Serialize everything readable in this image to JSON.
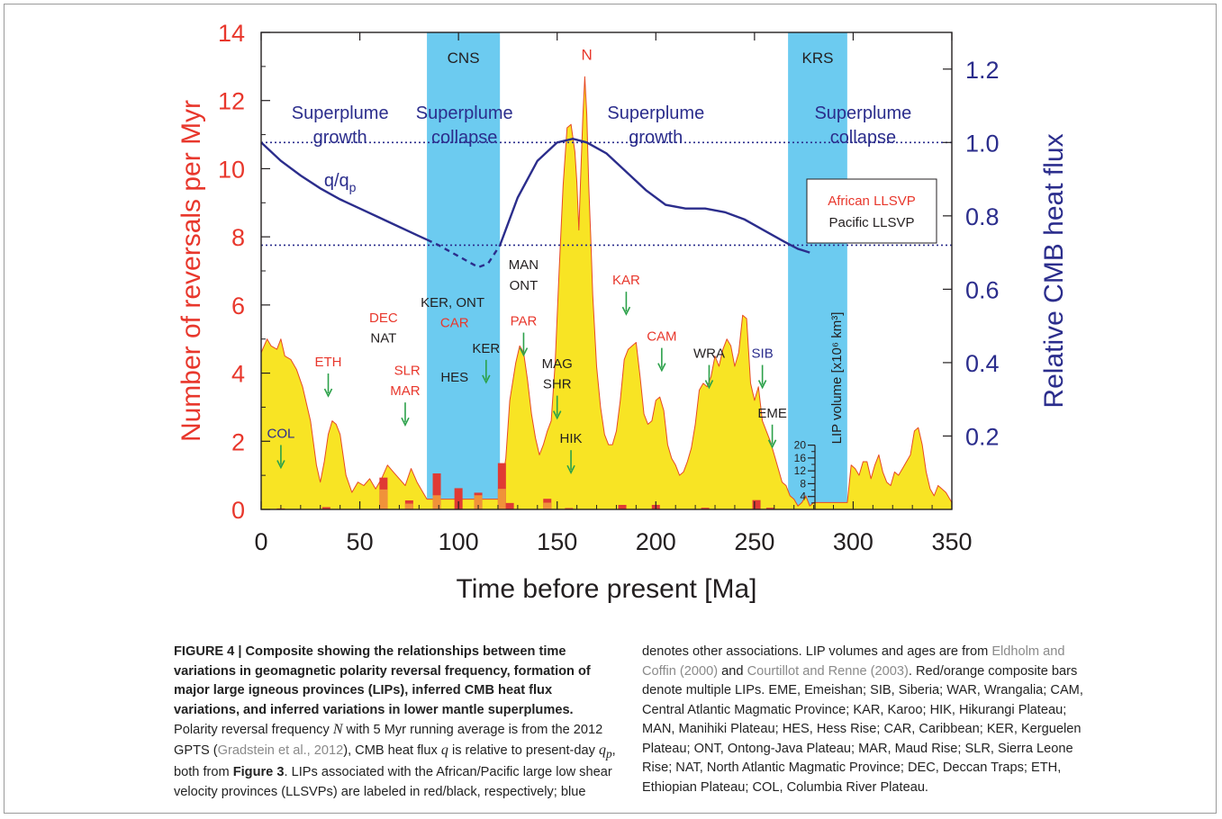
{
  "chart_data": {
    "type": "area",
    "xlabel": "Time before present  [Ma]",
    "ylabel_left": "Number of reversals per Myr",
    "ylabel_right": "Relative CMB heat flux",
    "ylabel_lip": "LIP volume [x10⁶ km³]",
    "xlim": [
      0,
      350
    ],
    "ylim_left": [
      0,
      14
    ],
    "ylim_right": [
      0,
      1.3
    ],
    "lip_volume_lim": [
      0,
      20
    ],
    "x_ticks": [
      "0",
      "50",
      "100",
      "150",
      "200",
      "250",
      "300",
      "350"
    ],
    "y_left_ticks": [
      "0",
      "2",
      "4",
      "6",
      "8",
      "10",
      "12",
      "14"
    ],
    "y_right_ticks": [
      "0.2",
      "0.4",
      "0.6",
      "0.8",
      "1.0",
      "1.2"
    ],
    "lip_ticks": [
      "4",
      "8",
      "12",
      "16",
      "20"
    ],
    "bands": [
      {
        "label": "CNS",
        "from": 84,
        "to": 121
      },
      {
        "label": "KRS",
        "from": 267,
        "to": 297
      }
    ],
    "phase_labels": [
      {
        "line1": "Superplume",
        "line2": "growth",
        "x": 40
      },
      {
        "line1": "Superplume",
        "line2": "collapse",
        "x": 103
      },
      {
        "line1": "Superplume",
        "line2": "growth",
        "x": 200
      },
      {
        "line1": "Superplume",
        "line2": "collapse",
        "x": 305
      }
    ],
    "reversal_series": {
      "name": "N",
      "x": [
        0,
        3,
        5,
        8,
        10,
        12,
        15,
        18,
        21,
        25,
        28,
        30,
        32,
        34,
        36,
        38,
        40,
        43,
        46,
        49,
        52,
        55,
        58,
        61,
        64,
        67,
        70,
        73,
        76,
        79,
        82,
        84,
        121,
        124,
        126,
        129,
        131,
        133,
        135,
        137,
        139,
        141,
        143,
        145,
        147,
        149,
        151,
        153,
        155,
        157,
        159,
        160,
        161,
        162,
        163,
        164,
        165,
        166,
        167,
        168,
        170,
        172,
        174,
        176,
        178,
        180,
        182,
        184,
        186,
        188,
        190,
        192,
        194,
        196,
        198,
        200,
        202,
        204,
        206,
        208,
        210,
        212,
        214,
        216,
        218,
        220,
        222,
        224,
        226,
        228,
        230,
        232,
        234,
        236,
        238,
        240,
        242,
        244,
        246,
        248,
        250,
        252,
        254,
        256,
        258,
        260,
        262,
        264,
        266,
        268,
        270,
        272,
        274,
        276,
        278,
        280,
        297,
        299,
        301,
        303,
        305,
        307,
        309,
        311,
        313,
        315,
        317,
        319,
        321,
        323,
        325,
        327,
        329,
        331,
        333,
        335,
        337,
        339,
        341,
        343,
        345,
        347,
        350
      ],
      "values": [
        4.6,
        5.0,
        4.8,
        4.7,
        5.0,
        4.5,
        4.4,
        4.1,
        3.6,
        2.6,
        1.3,
        0.8,
        1.4,
        2.2,
        2.6,
        2.5,
        2.2,
        1.0,
        0.5,
        0.8,
        0.7,
        0.9,
        0.6,
        0.9,
        1.3,
        1.1,
        0.9,
        0.7,
        1.2,
        0.8,
        0.5,
        0.3,
        0.3,
        1.5,
        3.2,
        4.3,
        4.8,
        4.6,
        3.8,
        2.8,
        2.1,
        1.6,
        1.9,
        2.3,
        2.6,
        4.3,
        7.0,
        9.5,
        11.2,
        11.3,
        10.5,
        9.6,
        8.2,
        9.9,
        11.5,
        12.7,
        11.6,
        9.5,
        8.0,
        6.3,
        4.2,
        3.0,
        2.2,
        1.9,
        1.9,
        2.3,
        3.2,
        4.4,
        4.7,
        4.8,
        4.9,
        3.9,
        2.8,
        2.5,
        2.6,
        3.2,
        3.3,
        2.9,
        1.9,
        1.5,
        1.3,
        1.0,
        1.1,
        1.4,
        1.8,
        2.5,
        3.5,
        3.7,
        3.6,
        3.9,
        4.5,
        4.2,
        4.7,
        5.0,
        4.8,
        4.2,
        4.6,
        5.7,
        5.6,
        3.7,
        3.2,
        3.6,
        2.6,
        2.3,
        2.0,
        1.6,
        1.2,
        0.8,
        0.7,
        0.4,
        0.3,
        0.1,
        0.2,
        0.4,
        0.1,
        0.2,
        0.2,
        1.3,
        1.2,
        1.0,
        1.4,
        1.4,
        0.9,
        1.3,
        1.6,
        1.1,
        0.8,
        0.7,
        1.1,
        1.0,
        1.2,
        1.4,
        1.6,
        2.3,
        2.4,
        1.9,
        1.1,
        0.6,
        0.4,
        0.7,
        0.6,
        0.5,
        0.2
      ]
    },
    "heat_flux_series": {
      "name": "q/qp",
      "label": "q/q",
      "label_sub": "p",
      "x": [
        0,
        10,
        20,
        30,
        40,
        50,
        60,
        70,
        80,
        84,
        90,
        100,
        110,
        115,
        121,
        130,
        140,
        150,
        158,
        165,
        175,
        185,
        195,
        205,
        215,
        225,
        235,
        245,
        255,
        265,
        272,
        278
      ],
      "values": [
        1.0,
        0.95,
        0.91,
        0.875,
        0.845,
        0.82,
        0.795,
        0.77,
        0.745,
        0.735,
        0.72,
        0.69,
        0.66,
        0.67,
        0.72,
        0.85,
        0.95,
        1.0,
        1.01,
        1.0,
        0.97,
        0.92,
        0.87,
        0.83,
        0.82,
        0.82,
        0.81,
        0.79,
        0.76,
        0.73,
        0.71,
        0.7
      ],
      "dashed_range": [
        84,
        121
      ]
    },
    "reference_lines": [
      1.0,
      0.72
    ],
    "lip_bars": [
      {
        "x": 10,
        "total": 0.3,
        "orange": 0
      },
      {
        "x": 33,
        "total": 0.7,
        "orange": 0
      },
      {
        "x": 62,
        "total": 9.9,
        "orange": 6.2
      },
      {
        "x": 75,
        "total": 2.8,
        "orange": 1.8
      },
      {
        "x": 89,
        "total": 11.2,
        "orange": 4.4
      },
      {
        "x": 100,
        "total": 6.6,
        "orange": 0
      },
      {
        "x": 110,
        "total": 5.2,
        "orange": 4.4
      },
      {
        "x": 122,
        "total": 14.4,
        "orange": 6.4
      },
      {
        "x": 126,
        "total": 2.0,
        "orange": 0
      },
      {
        "x": 145,
        "total": 3.3,
        "orange": 2.1
      },
      {
        "x": 156,
        "total": 0.4,
        "orange": 0
      },
      {
        "x": 183,
        "total": 1.4,
        "orange": 0
      },
      {
        "x": 200,
        "total": 1.4,
        "orange": 0
      },
      {
        "x": 225,
        "total": 0.5,
        "orange": 0
      },
      {
        "x": 251,
        "total": 2.9,
        "orange": 0
      },
      {
        "x": 258,
        "total": 0.5,
        "orange": 0
      }
    ],
    "lip_labels": [
      {
        "text": "COL",
        "color": "blue",
        "x": 10,
        "y": 2.1,
        "arrow": true
      },
      {
        "text": "ETH",
        "color": "red",
        "x": 34,
        "y": 4.2,
        "arrow": true
      },
      {
        "text": "DEC",
        "color": "red",
        "x": 62,
        "y": 5.5,
        "arrow": false
      },
      {
        "text": "NAT",
        "color": "black",
        "x": 62,
        "y": 4.9,
        "arrow": false
      },
      {
        "text": "SLR",
        "color": "red",
        "x": 74,
        "y": 3.95,
        "arrow": false
      },
      {
        "text": "MAR",
        "color": "red",
        "x": 73,
        "y": 3.35,
        "arrow": true
      },
      {
        "text": "KER, ONT",
        "color": "black",
        "x": 97,
        "y": 5.95,
        "arrow": false
      },
      {
        "text": "CAR",
        "color": "red",
        "x": 98,
        "y": 5.35,
        "arrow": false
      },
      {
        "text": "HES",
        "color": "black",
        "x": 98,
        "y": 3.75,
        "arrow": false
      },
      {
        "text": "KER",
        "color": "black",
        "x": 114,
        "y": 4.6,
        "arrow": true
      },
      {
        "text": "MAN",
        "color": "black",
        "x": 133,
        "y": 7.05,
        "arrow": false
      },
      {
        "text": "ONT",
        "color": "black",
        "x": 133,
        "y": 6.45,
        "arrow": false
      },
      {
        "text": "PAR",
        "color": "red",
        "x": 133,
        "y": 5.4,
        "arrow": true
      },
      {
        "text": "N",
        "color": "red",
        "x": 165,
        "y": 13.2,
        "arrow": false
      },
      {
        "text": "MAG",
        "color": "black",
        "x": 150,
        "y": 4.15,
        "arrow": false
      },
      {
        "text": "SHR",
        "color": "black",
        "x": 150,
        "y": 3.55,
        "arrow": true
      },
      {
        "text": "HIK",
        "color": "black",
        "x": 157,
        "y": 1.95,
        "arrow": true
      },
      {
        "text": "KAR",
        "color": "red",
        "x": 185,
        "y": 6.6,
        "arrow": true
      },
      {
        "text": "CAM",
        "color": "red",
        "x": 203,
        "y": 4.95,
        "arrow": true
      },
      {
        "text": "WRA",
        "color": "black",
        "x": 227,
        "y": 4.45,
        "arrow": true
      },
      {
        "text": "SIB",
        "color": "blue",
        "x": 254,
        "y": 4.45,
        "arrow": true
      },
      {
        "text": "EME",
        "color": "black",
        "x": 259,
        "y": 2.7,
        "arrow": true
      }
    ],
    "legend": [
      "African LLSVP",
      "Pacific LLSVP"
    ],
    "legend_position": "right, near 1.0 heat flux line",
    "grid": false
  },
  "caption": {
    "figure_label": "FIGURE 4 | ",
    "title": "Composite showing the relationships between time variations in geomagnetic polarity reversal frequency, formation of major large igneous provinces (LIPs), inferred CMB heat flux variations, and inferred variations in lower mantle superplumes.",
    "p1": " Polarity reversal frequency ",
    "n_sym": "N",
    "p2": " with 5 Myr running average is from the 2012 GPTS (",
    "ref1": "Gradstein et al., 2012",
    "p3": "), CMB heat flux ",
    "q_sym": "q",
    "p4": " is relative to present-day ",
    "qp_sym": "q",
    "qp_sub": "p",
    "p5": ", both from ",
    "fig3": "Figure 3",
    "p6": ". LIPs associated with the African/Pacific large low shear velocity provinces (LLSVPs) are labeled in red/black, respectively; blue",
    "r1": "denotes other associations. LIP volumes and ages are from ",
    "ref2": "Eldholm and Coffin (2000)",
    "r2": " and ",
    "ref3": "Courtillot and Renne (2003)",
    "r3": ". Red/orange composite bars denote multiple LIPs. EME, Emeishan; SIB, Siberia; WAR, Wrangalia; CAM, Central Atlantic Magmatic Province; KAR, Karoo; HIK, Hikurangi Plateau; MAN, Manihiki Plateau; HES, Hess Rise; CAR, Caribbean; KER, Kerguelen Plateau; ONT, Ontong-Java Plateau; MAR, Maud Rise; SLR, Sierra Leone Rise; NAT, North Atlantic Magmatic Province; DEC, Deccan Traps; ETH, Ethiopian Plateau; COL, Columbia River Plateau."
  },
  "colors": {
    "band": "#6ccbf0",
    "fill": "#f8e424",
    "outline": "#e64a26",
    "bar_red": "#e03a34",
    "bar_orange": "#f0923a",
    "heat": "#2b2d8c",
    "left_axis": "#e8372c",
    "right_axis": "#2b2d8c",
    "arrow": "#2ca14a",
    "label_red": "#e8372c",
    "label_black": "#231f20",
    "label_blue": "#2b2d8c"
  }
}
